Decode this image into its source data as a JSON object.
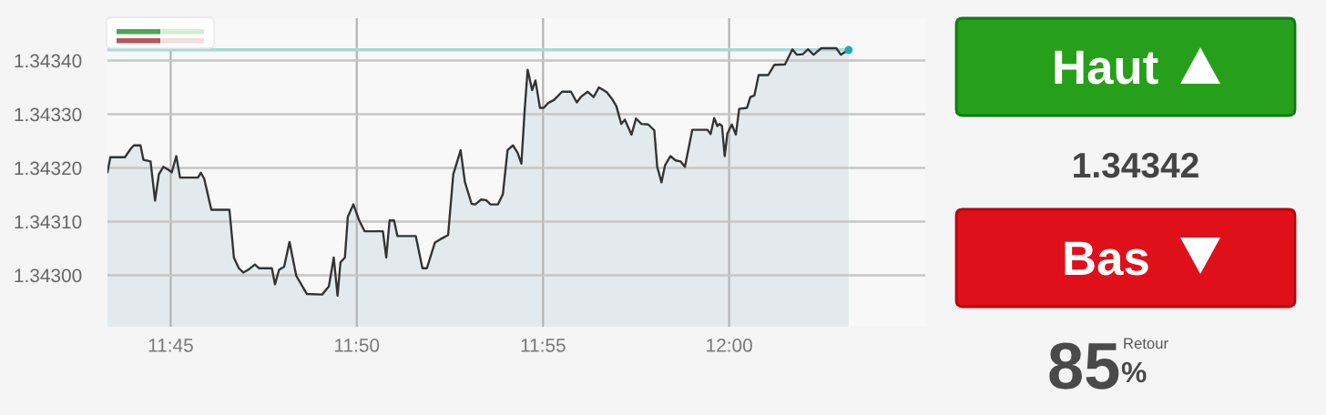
{
  "chart_data": [
    {
      "type": "area",
      "x": [
        11.7217,
        11.723,
        11.7295,
        11.7322,
        11.7335,
        11.7365,
        11.7378,
        11.741,
        11.743,
        11.7447,
        11.7467,
        11.7488,
        11.7505,
        11.7525,
        11.7542,
        11.7622,
        11.7635,
        11.765,
        11.7682,
        11.7763,
        11.7783,
        11.7805,
        11.7825,
        11.785,
        11.7877,
        11.7895,
        11.7953,
        11.7967,
        11.7985,
        11.8008,
        11.8032,
        11.8062,
        11.811,
        11.8178,
        11.8208,
        11.823,
        11.8247,
        11.826,
        11.828,
        11.8293,
        11.8318,
        11.8343,
        11.8368,
        11.845,
        11.8465,
        11.848,
        11.85,
        11.8515,
        11.8597,
        11.8627,
        11.8647,
        11.8683,
        11.8707,
        11.8742,
        11.8765,
        11.8798,
        11.8817,
        11.8847,
        11.8863,
        11.889,
        11.8912,
        11.8932,
        11.8965,
        11.8987,
        11.9008,
        11.9032,
        11.9053,
        11.907,
        11.9085,
        11.9098,
        11.9118,
        11.9133,
        11.9153,
        11.917,
        11.919,
        11.9217,
        11.9252,
        11.9292,
        11.9318,
        11.9338,
        11.9367,
        11.9393,
        11.9417,
        11.9452,
        11.9475,
        11.9495,
        11.9517,
        11.9533,
        11.9563,
        11.9583,
        11.9607,
        11.9638,
        11.9665,
        11.9678,
        11.9697,
        11.9713,
        11.9737,
        11.976,
        11.9783,
        11.9802,
        11.9835,
        11.9903,
        11.9917,
        11.9933,
        11.9947,
        11.9957,
        11.9968,
        11.998,
        11.9992,
        12.0012,
        12.003,
        12.0045,
        12.008,
        12.0095,
        12.0113,
        12.0132,
        12.0175,
        12.0202,
        12.025,
        12.0283,
        12.0303,
        12.033,
        12.0353,
        12.0378,
        12.0412,
        12.048,
        12.05,
        12.0535
      ],
      "series": [
        {
          "type": "area",
          "color": "#333333",
          "values": [
            1.343192,
            1.34322,
            1.34322,
            1.343236,
            1.343242,
            1.343242,
            1.343215,
            1.343212,
            1.343139,
            1.343188,
            1.343202,
            1.343197,
            1.343192,
            1.343222,
            1.343182,
            1.343182,
            1.343191,
            1.34318,
            1.343122,
            1.343122,
            1.343033,
            1.343013,
            1.343005,
            1.343011,
            1.34302,
            1.343013,
            1.343013,
            1.342983,
            1.34301,
            1.343016,
            1.343062,
            1.342999,
            1.342965,
            1.342964,
            1.342979,
            1.343033,
            1.342962,
            1.343024,
            1.343033,
            1.343109,
            1.343132,
            1.343103,
            1.343082,
            1.343082,
            1.343033,
            1.343102,
            1.343102,
            1.343073,
            1.343073,
            1.343013,
            1.343013,
            1.343061,
            1.343067,
            1.343075,
            1.343188,
            1.343233,
            1.343174,
            1.343133,
            1.343132,
            1.343141,
            1.34314,
            1.343132,
            1.343132,
            1.343151,
            1.343233,
            1.343242,
            1.343228,
            1.343208,
            1.34331,
            1.343383,
            1.343345,
            1.343363,
            1.343312,
            1.343312,
            1.343321,
            1.343327,
            1.343342,
            1.343342,
            1.343322,
            1.343333,
            1.343342,
            1.343332,
            1.34335,
            1.343341,
            1.343329,
            1.343315,
            1.343282,
            1.34329,
            1.343262,
            1.343292,
            1.343282,
            1.343281,
            1.34327,
            1.343202,
            1.343173,
            1.343205,
            1.343222,
            1.343214,
            1.343212,
            1.343202,
            1.343271,
            1.343271,
            1.343263,
            1.343293,
            1.343278,
            1.343282,
            1.343278,
            1.343222,
            1.343264,
            1.343281,
            1.343262,
            1.34331,
            1.343312,
            1.343332,
            1.343335,
            1.343373,
            1.343373,
            1.343392,
            1.343393,
            1.343421,
            1.343411,
            1.343412,
            1.343421,
            1.343411,
            1.343423,
            1.343423,
            1.343411,
            1.34342
          ]
        },
        {
          "type": "scatter",
          "color": "#1aaeb3",
          "marker": "circle",
          "x": [
            12.0535
          ],
          "values": [
            1.34342
          ]
        }
      ],
      "ref_lines": [
        {
          "axis": "y",
          "value": 1.34342,
          "color": "#a6dada"
        }
      ],
      "xlim": [
        11.7217,
        12.0878
      ],
      "xticks": [
        {
          "value": 11.75,
          "label": "11:45"
        },
        {
          "value": 11.8333,
          "label": "11:50"
        },
        {
          "value": 11.9167,
          "label": "11:55"
        },
        {
          "value": 12.0,
          "label": "12:00"
        }
      ],
      "ylim": [
        1.342904,
        1.343479
      ],
      "yticks": [
        {
          "value": 1.343,
          "label": "1.34300"
        },
        {
          "value": 1.3431,
          "label": "1.34310"
        },
        {
          "value": 1.3432,
          "label": "1.34320"
        },
        {
          "value": 1.3433,
          "label": "1.34330"
        },
        {
          "value": 1.3434,
          "label": "1.34340"
        }
      ],
      "grid": true
    },
    {
      "type": "other",
      "annotations": [
        "Haut",
        "1.34342",
        "Bas",
        "85",
        "%",
        "Retour"
      ]
    }
  ]
}
